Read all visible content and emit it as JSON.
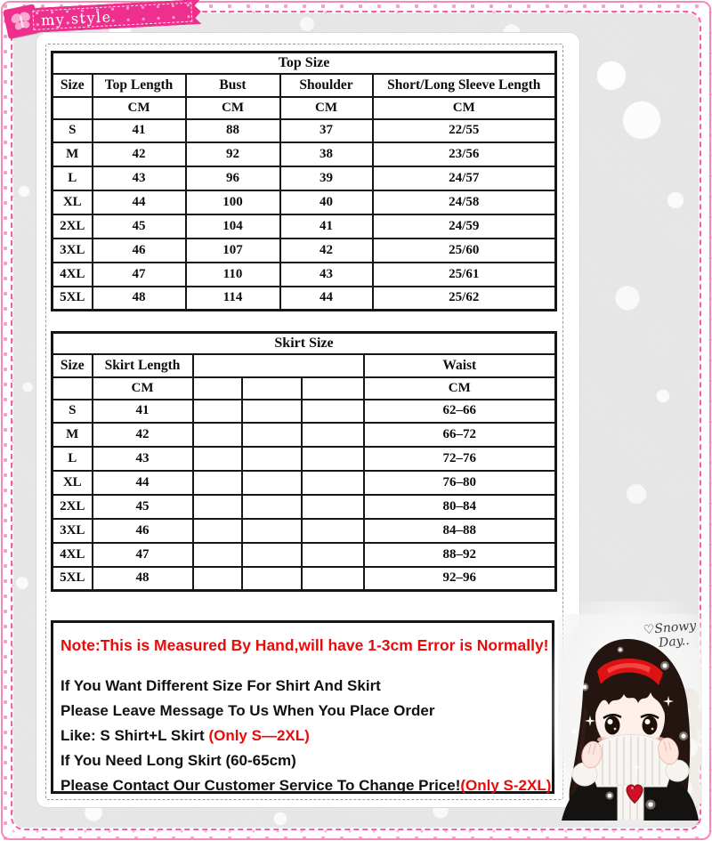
{
  "ribbon": {
    "label": "my style"
  },
  "watermark": {
    "line1": "♡Snowy",
    "line2": "Day.."
  },
  "top_table": {
    "title": "Top Size",
    "header": [
      {
        "label": "Size",
        "span": 1
      },
      {
        "label": "Top Length",
        "span": 1
      },
      {
        "label": "Bust",
        "span": 1
      },
      {
        "label": "Shoulder",
        "span": 1
      },
      {
        "label": "Short/Long Sleeve Length",
        "span": 1
      }
    ],
    "units": [
      "",
      "CM",
      "CM",
      "CM",
      "CM"
    ],
    "rows": [
      [
        "S",
        "41",
        "88",
        "37",
        "22/55"
      ],
      [
        "M",
        "42",
        "92",
        "38",
        "23/56"
      ],
      [
        "L",
        "43",
        "96",
        "39",
        "24/57"
      ],
      [
        "XL",
        "44",
        "100",
        "40",
        "24/58"
      ],
      [
        "2XL",
        "45",
        "104",
        "41",
        "24/59"
      ],
      [
        "3XL",
        "46",
        "107",
        "42",
        "25/60"
      ],
      [
        "4XL",
        "47",
        "110",
        "43",
        "25/61"
      ],
      [
        "5XL",
        "48",
        "114",
        "44",
        "25/62"
      ]
    ]
  },
  "skirt_table": {
    "title": "Skirt Size",
    "header": [
      {
        "label": "Size",
        "span": 1
      },
      {
        "label": "Skirt Length",
        "span": 1
      },
      {
        "label": "",
        "span": 3
      },
      {
        "label": "Waist",
        "span": 1
      }
    ],
    "units": [
      "",
      "CM",
      "",
      "",
      "",
      "CM"
    ],
    "rows": [
      [
        "S",
        "41",
        "",
        "",
        "",
        "62–66"
      ],
      [
        "M",
        "42",
        "",
        "",
        "",
        "66–72"
      ],
      [
        "L",
        "43",
        "",
        "",
        "",
        "72–76"
      ],
      [
        "XL",
        "44",
        "",
        "",
        "",
        "76–80"
      ],
      [
        "2XL",
        "45",
        "",
        "",
        "",
        "80–84"
      ],
      [
        "3XL",
        "46",
        "",
        "",
        "",
        "84–88"
      ],
      [
        "4XL",
        "47",
        "",
        "",
        "",
        "88–92"
      ],
      [
        "5XL",
        "48",
        "",
        "",
        "",
        "92–96"
      ]
    ]
  },
  "notes": {
    "warning": "Note:This is Measured By Hand,will have 1-3cm Error is Normally!",
    "lines": [
      {
        "black": "If You Want Different Size For Shirt And Skirt",
        "red": ""
      },
      {
        "black": "Please Leave Message To Us When You Place Order",
        "red": ""
      },
      {
        "black": "Like: S Shirt+L Skirt ",
        "red": "(Only S—2XL)"
      },
      {
        "black": "If You Need Long Skirt (60-65cm)",
        "red": ""
      },
      {
        "black": "Please Contact Our Customer Service To Change Price!",
        "red": "(Only S-2XL)"
      }
    ]
  },
  "colors": {
    "accent_pink": "#ee2f8e",
    "border_pink_dashed": "#f45ea4",
    "note_red": "#ea0a0a",
    "table_border": "#161616",
    "headband_red": "#dd1212",
    "heart_red": "#cf1126"
  }
}
